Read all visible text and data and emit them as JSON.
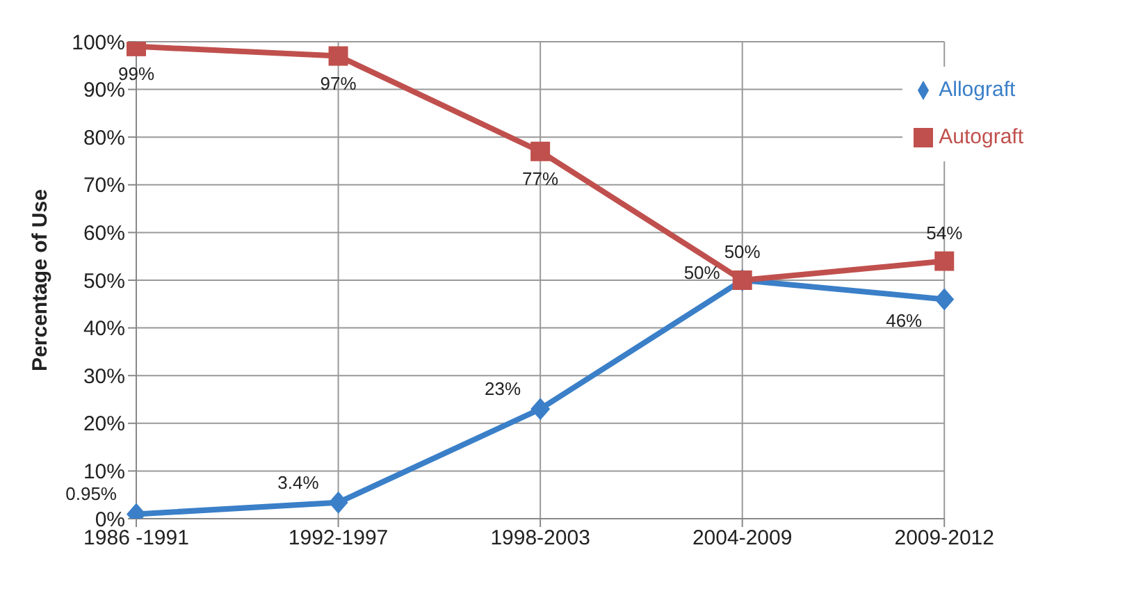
{
  "chart_data": {
    "type": "line",
    "ylabel": "Percentage of Use",
    "categories": [
      "1986 -1991",
      "1992-1997",
      "1998-2003",
      "2004-2009",
      "2009-2012"
    ],
    "series": [
      {
        "name": "Allograft",
        "color": "#3a7fc8",
        "marker": "diamond",
        "values": [
          0.95,
          3.4,
          23,
          50,
          46
        ],
        "value_labels": [
          "0.95%",
          "3.4%",
          "23%",
          "50%",
          "46%"
        ]
      },
      {
        "name": "Autograft",
        "color": "#c0504d",
        "marker": "square",
        "values": [
          99,
          97,
          77,
          50,
          54
        ],
        "value_labels": [
          "99%",
          "97%",
          "77%",
          "50%",
          "54%"
        ]
      }
    ],
    "ylim": [
      0,
      100
    ],
    "yticks": [
      {
        "value": 0,
        "label": "0%"
      },
      {
        "value": 10,
        "label": "10%"
      },
      {
        "value": 20,
        "label": "20%"
      },
      {
        "value": 30,
        "label": "30%"
      },
      {
        "value": 40,
        "label": "40%"
      },
      {
        "value": 50,
        "label": "50%"
      },
      {
        "value": 60,
        "label": "60%"
      },
      {
        "value": 70,
        "label": "70%"
      },
      {
        "value": 80,
        "label": "80%"
      },
      {
        "value": 90,
        "label": "90%"
      },
      {
        "value": 100,
        "label": "100%"
      }
    ],
    "grid": true,
    "legend": "top right",
    "line_style": "solid"
  }
}
